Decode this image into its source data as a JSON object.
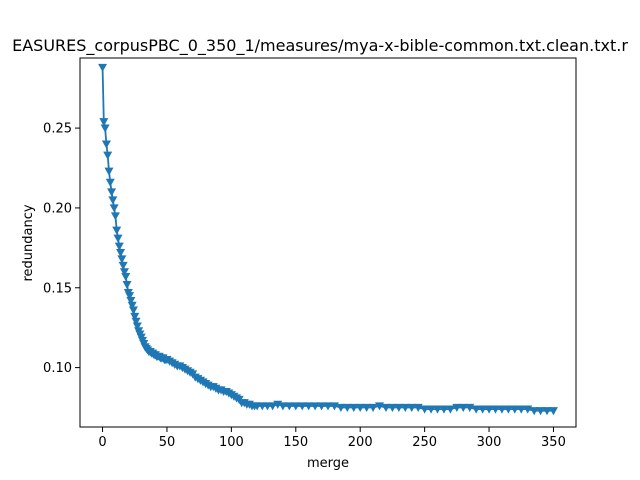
{
  "chart_data": {
    "type": "line",
    "title": "EASURES_corpusPBC_0_350_1/measures/mya-x-bible-common.txt.clean.txt.r",
    "xlabel": "merge",
    "ylabel": "redundancy",
    "xlim": [
      -17.5,
      367.5
    ],
    "ylim": [
      0.0628,
      0.2939
    ],
    "xticks": [
      0,
      50,
      100,
      150,
      200,
      250,
      300,
      350
    ],
    "xtick_labels": [
      "0",
      "50",
      "100",
      "150",
      "200",
      "250",
      "300",
      "350"
    ],
    "yticks": [
      0.1,
      0.15,
      0.2,
      0.25
    ],
    "ytick_labels": [
      "0.10",
      "0.15",
      "0.20",
      "0.25"
    ],
    "grid": false,
    "marker": "triangle-down",
    "series": [
      {
        "color": "#1f77b4",
        "x": [
          0,
          1,
          2,
          3,
          4,
          5,
          6,
          7,
          8,
          9,
          10,
          11,
          12,
          13,
          14,
          15,
          16,
          17,
          18,
          19,
          20,
          21,
          22,
          23,
          24,
          25,
          26,
          27,
          28,
          29,
          30,
          31,
          32,
          33,
          34,
          35,
          36,
          37,
          38,
          39,
          40,
          41,
          42,
          43,
          44,
          45,
          46,
          47,
          48,
          49,
          50,
          52,
          54,
          56,
          58,
          60,
          62,
          64,
          66,
          68,
          70,
          72,
          74,
          76,
          78,
          80,
          82,
          84,
          86,
          88,
          90,
          92,
          94,
          96,
          98,
          100,
          102,
          104,
          106,
          108,
          110,
          112,
          114,
          116,
          118,
          120,
          124,
          128,
          132,
          136,
          140,
          145,
          150,
          155,
          160,
          165,
          170,
          175,
          180,
          185,
          190,
          195,
          200,
          205,
          210,
          215,
          220,
          225,
          230,
          235,
          240,
          245,
          250,
          255,
          260,
          265,
          270,
          275,
          280,
          285,
          290,
          295,
          300,
          305,
          310,
          315,
          320,
          325,
          330,
          335,
          340,
          345,
          350
        ],
        "values": [
          0.288,
          0.254,
          0.25,
          0.24,
          0.233,
          0.223,
          0.216,
          0.21,
          0.205,
          0.2,
          0.195,
          0.186,
          0.181,
          0.176,
          0.172,
          0.168,
          0.164,
          0.16,
          0.157,
          0.152,
          0.147,
          0.145,
          0.142,
          0.139,
          0.136,
          0.132,
          0.129,
          0.126,
          0.123,
          0.121,
          0.119,
          0.117,
          0.115,
          0.113,
          0.112,
          0.111,
          0.11,
          0.11,
          0.109,
          0.109,
          0.108,
          0.108,
          0.107,
          0.107,
          0.107,
          0.106,
          0.106,
          0.106,
          0.105,
          0.105,
          0.105,
          0.104,
          0.103,
          0.102,
          0.101,
          0.101,
          0.1,
          0.099,
          0.098,
          0.097,
          0.096,
          0.094,
          0.093,
          0.092,
          0.091,
          0.09,
          0.089,
          0.088,
          0.088,
          0.087,
          0.086,
          0.086,
          0.085,
          0.085,
          0.084,
          0.083,
          0.082,
          0.081,
          0.08,
          0.078,
          0.078,
          0.077,
          0.077,
          0.076,
          0.076,
          0.076,
          0.076,
          0.076,
          0.076,
          0.077,
          0.076,
          0.076,
          0.076,
          0.076,
          0.076,
          0.076,
          0.076,
          0.076,
          0.076,
          0.075,
          0.075,
          0.075,
          0.075,
          0.075,
          0.075,
          0.076,
          0.075,
          0.075,
          0.075,
          0.075,
          0.075,
          0.075,
          0.074,
          0.074,
          0.074,
          0.074,
          0.074,
          0.075,
          0.075,
          0.075,
          0.074,
          0.074,
          0.074,
          0.074,
          0.074,
          0.074,
          0.074,
          0.074,
          0.074,
          0.073,
          0.073,
          0.073,
          0.073
        ]
      }
    ]
  }
}
